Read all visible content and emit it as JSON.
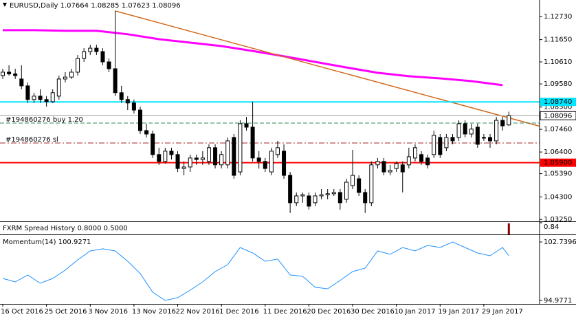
{
  "chart_data": [
    {
      "type": "candlestick",
      "title": "EURUSD,Daily",
      "categories": [
        "16 Oct 2016",
        null,
        null,
        null,
        null,
        null,
        null,
        "25 Oct 2016",
        null,
        null,
        null,
        null,
        null,
        null,
        "3 Nov 2016",
        null,
        null,
        null,
        null,
        null,
        null,
        "13 Nov 2016",
        null,
        null,
        null,
        null,
        null,
        null,
        "22 Nov 2016",
        null,
        null,
        null,
        null,
        null,
        null,
        "1 Dec 2016",
        null,
        null,
        null,
        null,
        null,
        null,
        "11 Dec 2016",
        null,
        null,
        null,
        null,
        null,
        null,
        "20 Dec 2016",
        null,
        null,
        null,
        null,
        null,
        null,
        "30 Dec 2016",
        null,
        null,
        null,
        null,
        null,
        null,
        "10 Jan 2017",
        null,
        null,
        null,
        null,
        null,
        null,
        "19 Jan 2017",
        null,
        null,
        null,
        null,
        null,
        null,
        "29 Jan 2017",
        null,
        null,
        null,
        null
      ],
      "open": [
        1.0997,
        1.1013,
        1.1005,
        1.0981,
        1.0949,
        1.0885,
        1.0901,
        1.0885,
        1.0875,
        1.0901,
        1.0981,
        1.099,
        1.1013,
        1.1077,
        1.1109,
        1.1125,
        1.1109,
        1.1061,
        1.1029,
        1.0917,
        1.0885,
        1.0869,
        1.0836,
        1.074,
        1.0724,
        1.0628,
        1.0596,
        1.0644,
        1.0628,
        1.0563,
        1.057,
        1.0612,
        1.0605,
        1.0596,
        1.066,
        1.058,
        1.058,
        1.0708,
        1.0547,
        1.0772,
        1.0756,
        1.0612,
        1.0596,
        1.0547,
        1.0628,
        1.0644,
        1.0531,
        1.0403,
        1.0435,
        1.0435,
        1.0403,
        1.0435,
        1.044,
        1.0445,
        1.0451,
        1.0419,
        1.0483,
        1.0515,
        1.0451,
        1.0403,
        1.058,
        1.0596,
        1.0547,
        1.0563,
        1.058,
        1.058,
        1.0612,
        1.0628,
        1.0612,
        1.0628,
        1.0708,
        1.066,
        1.0708,
        1.0708,
        1.0772,
        1.0724,
        1.0756,
        1.0708,
        1.0708,
        1.0692,
        1.0788,
        1.07664
      ],
      "high": [
        1.1029,
        1.1045,
        1.1029,
        1.1045,
        1.0965,
        1.0917,
        1.0933,
        1.0901,
        1.0933,
        1.0997,
        1.1013,
        1.1029,
        1.1093,
        1.1125,
        1.1141,
        1.1141,
        1.1125,
        1.1077,
        1.1299,
        1.0949,
        1.0901,
        1.0885,
        1.0852,
        1.0772,
        1.074,
        1.066,
        1.066,
        1.066,
        1.0644,
        1.0596,
        1.0628,
        1.0628,
        1.0644,
        1.0676,
        1.0676,
        1.0644,
        1.0708,
        1.0724,
        1.0788,
        1.0804,
        1.0875,
        1.0644,
        1.0612,
        1.066,
        1.0692,
        1.0676,
        1.0547,
        1.0451,
        1.0451,
        1.0451,
        1.0451,
        1.0467,
        1.0467,
        1.0467,
        1.0467,
        1.0515,
        1.065,
        1.0531,
        1.0467,
        1.0596,
        1.0612,
        1.0612,
        1.058,
        1.0596,
        1.0596,
        1.066,
        1.0676,
        1.0644,
        1.0628,
        1.074,
        1.0724,
        1.0724,
        1.0724,
        1.0788,
        1.0788,
        1.0772,
        1.0772,
        1.0724,
        1.0724,
        1.0804,
        1.0804,
        1.08285
      ],
      "low": [
        1.0981,
        1.0997,
        1.0981,
        1.0933,
        1.0869,
        1.0869,
        1.0869,
        1.0852,
        1.0869,
        1.0885,
        1.0965,
        1.0981,
        1.0997,
        1.1061,
        1.1093,
        1.1093,
        1.1045,
        1.1013,
        1.0901,
        1.0869,
        1.0836,
        1.082,
        1.0724,
        1.0708,
        1.0612,
        1.058,
        1.0586,
        1.0605,
        1.0547,
        1.0531,
        1.0547,
        1.058,
        1.058,
        1.058,
        1.0563,
        1.0563,
        1.0563,
        1.0515,
        1.0531,
        1.074,
        1.0596,
        1.0563,
        1.0547,
        1.0531,
        1.0612,
        1.0515,
        1.0355,
        1.0387,
        1.0403,
        1.0371,
        1.0387,
        1.0419,
        1.0419,
        1.0435,
        1.0371,
        1.0403,
        1.0467,
        1.0435,
        1.0355,
        1.0387,
        1.0563,
        1.0531,
        1.0531,
        1.0547,
        1.0451,
        1.0563,
        1.0596,
        1.058,
        1.0563,
        1.0612,
        1.0612,
        1.0644,
        1.0676,
        1.0692,
        1.0708,
        1.0708,
        1.066,
        1.0692,
        1.066,
        1.0676,
        1.074,
        1.07623
      ],
      "close": [
        1.1013,
        1.1005,
        1.0997,
        1.0949,
        1.0885,
        1.0901,
        1.0885,
        1.0875,
        1.0917,
        1.0981,
        1.099,
        1.1013,
        1.1077,
        1.1109,
        1.1125,
        1.1109,
        1.1061,
        1.1029,
        1.0917,
        1.0885,
        1.0869,
        1.0836,
        1.074,
        1.0724,
        1.0628,
        1.0596,
        1.0644,
        1.0628,
        1.0563,
        1.057,
        1.0612,
        1.0605,
        1.0612,
        1.066,
        1.058,
        1.0628,
        1.0692,
        1.0531,
        1.0772,
        1.0756,
        1.0612,
        1.0596,
        1.0563,
        1.0644,
        1.066,
        1.0531,
        1.0403,
        1.0435,
        1.044,
        1.0387,
        1.0435,
        1.044,
        1.0445,
        1.0451,
        1.0403,
        1.0499,
        1.0531,
        1.0451,
        1.0403,
        1.058,
        1.0596,
        1.0547,
        1.0555,
        1.0586,
        1.0547,
        1.0618,
        1.066,
        1.0596,
        1.058,
        1.0718,
        1.0628,
        1.0708,
        1.0692,
        1.0772,
        1.0724,
        1.0747,
        1.0676,
        1.0708,
        1.0692,
        1.0788,
        1.0762,
        1.08096
      ],
      "ylim": [
        1.0316,
        1.135
      ],
      "yticks": [
        {
          "value": 1.1273,
          "label": "1.12730"
        },
        {
          "value": 1.1165,
          "label": "1.11650"
        },
        {
          "value": 1.1061,
          "label": "1.10610"
        },
        {
          "value": 1.0958,
          "label": "1.09580"
        },
        {
          "value": 1.085,
          "label": "1.08500"
        },
        {
          "value": 1.0746,
          "label": "1.07460"
        },
        {
          "value": 1.064,
          "label": "1.06400"
        },
        {
          "value": 1.0539,
          "label": "1.05390"
        },
        {
          "value": 1.043,
          "label": "1.04300"
        },
        {
          "value": 1.0325,
          "label": "1.03250"
        }
      ],
      "ma": {
        "color": "#ff00ff",
        "x": [
          0,
          5,
          10,
          15,
          20,
          25,
          30,
          35,
          40,
          45,
          50,
          55,
          60,
          65,
          70,
          75,
          80
        ],
        "values": [
          1.1209,
          1.1209,
          1.1206,
          1.1206,
          1.119,
          1.1167,
          1.1151,
          1.1135,
          1.1112,
          1.1087,
          1.1061,
          1.1035,
          1.101,
          1.0994,
          1.0984,
          1.0971,
          1.0952
        ]
      },
      "trendline": {
        "color": "#d2691e",
        "x": [
          18,
          86.5
        ],
        "values": [
          1.1299,
          1.0756
        ]
      },
      "levels": [
        {
          "value": 1.0874,
          "label": "1.08740",
          "color": "#00e5ff"
        },
        {
          "value": 1.059,
          "label": "1.05900",
          "color": "#ff0000"
        }
      ],
      "orders": [
        {
          "value": 1.0775,
          "text": "#194860276 buy 1.20",
          "color": "#2e8b57"
        },
        {
          "value": 1.0682,
          "text": "#194860276 sl",
          "color": "#a52a2a"
        }
      ]
    },
    {
      "type": "bar",
      "title": "FXRM Spread History 0.8000 0.5000",
      "x": [
        81
      ],
      "values": [
        0.8
      ],
      "color": "#8b0000",
      "ylim": [
        0,
        0.84
      ],
      "yticks": [
        0.84
      ]
    },
    {
      "type": "line",
      "title": "Momentum(14)",
      "color": "#1e90ff",
      "x": [
        0,
        2,
        4,
        6,
        8,
        10,
        12,
        14,
        16,
        18,
        20,
        22,
        24,
        26,
        28,
        30,
        32,
        34,
        36,
        38,
        40,
        42,
        44,
        46,
        48,
        50,
        52,
        54,
        56,
        58,
        60,
        62,
        64,
        66,
        68,
        70,
        72,
        74,
        76,
        78,
        80,
        81
      ],
      "values": [
        97.9,
        97.44,
        98.36,
        97.26,
        97.9,
        99.0,
        100.37,
        101.55,
        101.83,
        101.55,
        100.18,
        98.54,
        96.07,
        94.98,
        95.34,
        96.35,
        97.44,
        98.81,
        99.73,
        102.01,
        101.28,
        100.18,
        100.46,
        98.36,
        98.18,
        96.72,
        96.53,
        97.63,
        98.81,
        99.27,
        101.55,
        101.1,
        102.01,
        101.55,
        102.28,
        102.01,
        102.74,
        102.01,
        101.28,
        100.91,
        102.01,
        100.9271
      ],
      "ylim": [
        94.52,
        103.56
      ],
      "yticks": [
        102.7396,
        94.9771
      ]
    }
  ]
}
